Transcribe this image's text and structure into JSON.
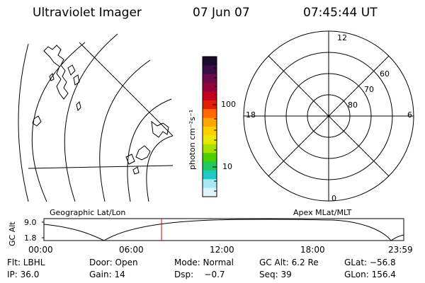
{
  "header": {
    "instrument": "Ultraviolet Imager",
    "date": "07 Jun 07",
    "time": "07:45:44 UT"
  },
  "colorbar": {
    "unit_label": "photon cm⁻²s⁻¹",
    "ticks": [
      "100",
      "10"
    ],
    "colors": [
      "#1a0a2e",
      "#3c0c48",
      "#6a0a4a",
      "#98003a",
      "#c8001e",
      "#e02000",
      "#ff6a00",
      "#ffa500",
      "#ffd000",
      "#e8e800",
      "#a8e000",
      "#48d000",
      "#20c860",
      "#20c8c8",
      "#a8e8f0",
      "#dff4f8"
    ]
  },
  "polar_plot": {
    "mlt_labels": [
      "12",
      "18",
      "6",
      "0"
    ],
    "mlat_labels": [
      "60",
      "70",
      "80"
    ]
  },
  "labels": {
    "geo_title": "Geographic Lat/Lon",
    "apex_title": "Apex MLat/MLT",
    "axis_label": "GC Alt",
    "ytick_top": "9.0",
    "ytick_bottom": "1.8"
  },
  "timeline": {
    "ticks": [
      "00:00",
      "06:00",
      "12:00",
      "18:00",
      "23:59"
    ],
    "current_time_fraction": 0.327,
    "marker_color": "#e00000"
  },
  "info": {
    "filter": "Flt: LBHL",
    "door": "Door: Open",
    "mode": "Mode: Normal",
    "gc_alt": "GC Alt: 6.2 Re",
    "glat": "GLat: −56.8",
    "ip": "IP: 36.0",
    "gain": "Gain: 14",
    "dsp": "Dsp:    −0.7",
    "seq": "Seq: 39",
    "glon": "GLon: 156.4"
  }
}
